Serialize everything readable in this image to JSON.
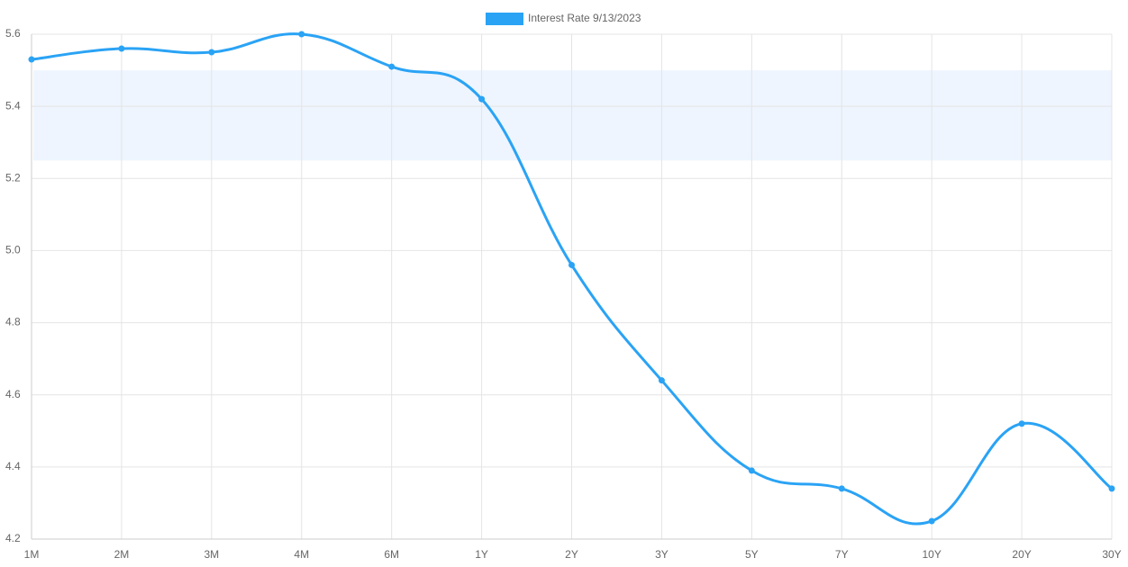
{
  "chart_data": {
    "type": "line",
    "series": [
      {
        "name": "Interest Rate 9/13/2023",
        "color": "#2aa3f5",
        "values": [
          5.53,
          5.56,
          5.55,
          5.6,
          5.51,
          5.42,
          4.96,
          4.64,
          4.39,
          4.34,
          4.25,
          4.52,
          4.34
        ]
      }
    ],
    "categories": [
      "1M",
      "2M",
      "3M",
      "4M",
      "6M",
      "1Y",
      "2Y",
      "3Y",
      "5Y",
      "7Y",
      "10Y",
      "20Y",
      "30Y"
    ],
    "ylim": [
      4.2,
      5.6
    ],
    "yticks": [
      4.2,
      4.4,
      4.6,
      4.8,
      {
        "value": 5,
        "label": "5.0"
      },
      5.2,
      5.4,
      5.6
    ],
    "grid": true,
    "highlight_band": {
      "from": 5.25,
      "to": 5.5,
      "color": "#eef5fe"
    },
    "legend": "top"
  }
}
